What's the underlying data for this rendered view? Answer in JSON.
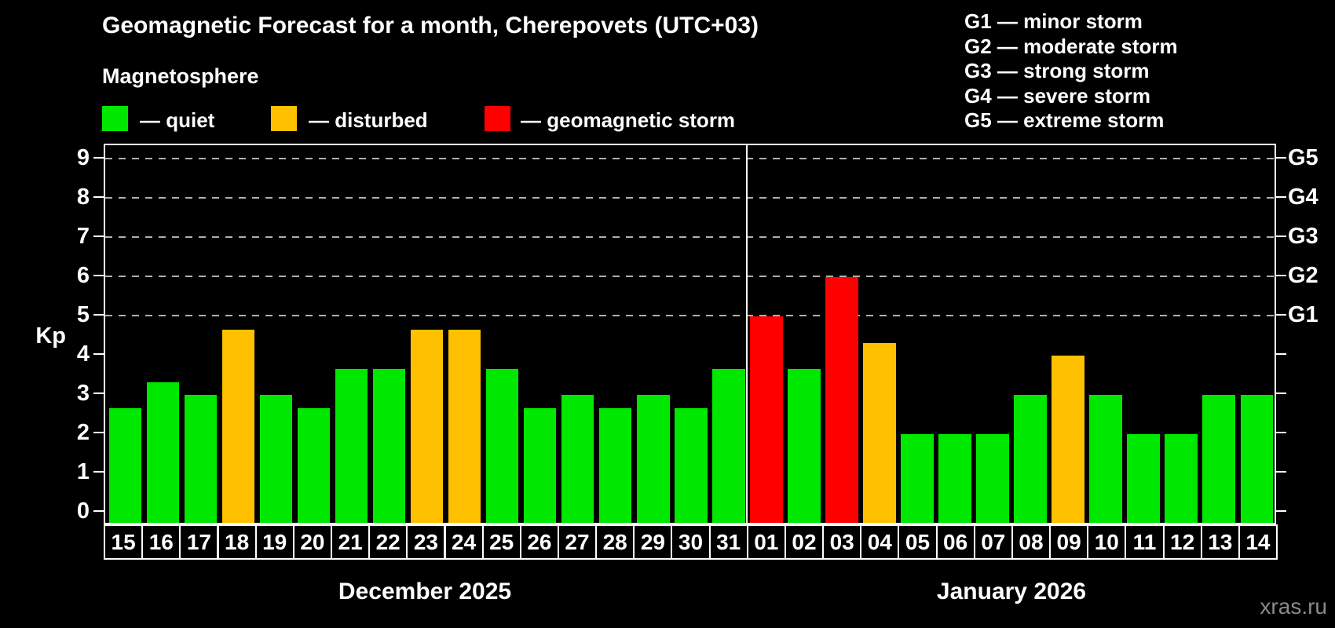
{
  "header": {
    "title": "Geomagnetic Forecast for a month, Cherepovets (UTC+03)",
    "subtitle": "Magnetosphere"
  },
  "condition_legend": {
    "quiet_label": "— quiet",
    "disturbed_label": "— disturbed",
    "storm_label": "— geomagnetic storm"
  },
  "storm_scale_legend": [
    "G1 — minor storm",
    "G2 — moderate storm",
    "G3 — strong storm",
    "G4 — severe storm",
    "G5 — extreme storm"
  ],
  "watermark": "xras.ru",
  "colors": {
    "quiet": "#00e800",
    "disturbed": "#ffc000",
    "storm": "#ff0000",
    "axis": "#ffffff",
    "grid": "#b0b0b0",
    "watermark": "#8a8a8a"
  },
  "chart_data": {
    "type": "bar",
    "ylabel": "Kp",
    "ylim": [
      0,
      9
    ],
    "y_ticks": [
      0,
      1,
      2,
      3,
      4,
      5,
      6,
      7,
      8,
      9
    ],
    "grid_levels": [
      5,
      6,
      7,
      8,
      9
    ],
    "right_axis": [
      {
        "label": "G1",
        "kp": 5
      },
      {
        "label": "G2",
        "kp": 6
      },
      {
        "label": "G3",
        "kp": 7
      },
      {
        "label": "G4",
        "kp": 8
      },
      {
        "label": "G5",
        "kp": 9
      }
    ],
    "months": [
      {
        "label": "December 2025",
        "days": 17
      },
      {
        "label": "January 2026",
        "days": 14
      }
    ],
    "categories": [
      "15",
      "16",
      "17",
      "18",
      "19",
      "20",
      "21",
      "22",
      "23",
      "24",
      "25",
      "26",
      "27",
      "28",
      "29",
      "30",
      "31",
      "01",
      "02",
      "03",
      "04",
      "05",
      "06",
      "07",
      "08",
      "09",
      "10",
      "11",
      "12",
      "13",
      "14"
    ],
    "values": [
      2.67,
      3.33,
      3,
      4.67,
      3,
      2.67,
      3.67,
      3.67,
      4.67,
      4.67,
      3.67,
      2.67,
      3,
      2.67,
      3,
      2.67,
      3.67,
      5,
      3.67,
      6,
      4.33,
      2,
      2,
      2,
      3,
      4,
      3,
      2,
      2,
      3,
      3
    ],
    "statuses": [
      "quiet",
      "quiet",
      "quiet",
      "disturbed",
      "quiet",
      "quiet",
      "quiet",
      "quiet",
      "disturbed",
      "disturbed",
      "quiet",
      "quiet",
      "quiet",
      "quiet",
      "quiet",
      "quiet",
      "quiet",
      "storm",
      "quiet",
      "storm",
      "disturbed",
      "quiet",
      "quiet",
      "quiet",
      "quiet",
      "disturbed",
      "quiet",
      "quiet",
      "quiet",
      "quiet",
      "quiet"
    ]
  }
}
